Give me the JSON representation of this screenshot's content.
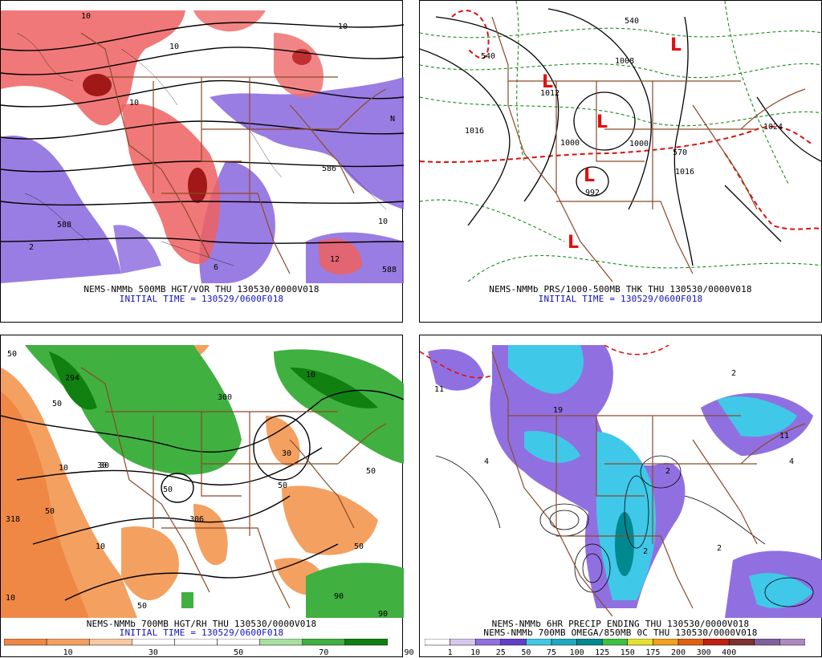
{
  "panels": {
    "top_left": {
      "caption": "NEMS-NMMb 500MB HGT/VOR THU 130530/0000V018",
      "initial": "INITIAL TIME = 130529/0600F018",
      "labels": [
        "10",
        "588",
        "586",
        "10",
        "N",
        "2",
        "6",
        "10",
        "588",
        "10",
        "12",
        "10"
      ]
    },
    "top_right": {
      "caption": "NEMS-NMMb PRS/1000-500MB THK THU 130530/0000V018",
      "initial": "INITIAL TIME = 130529/0600F018",
      "labels": [
        "540",
        "1008",
        "1012",
        "1016",
        "1000",
        "992",
        "1024",
        "1016",
        "570",
        "540",
        "1000"
      ],
      "low_marker": "L"
    },
    "bottom_left": {
      "caption": "NEMS-NMMb 700MB HGT/RH THU 130530/0000V018",
      "initial": "INITIAL TIME = 130529/0600F018",
      "labels": [
        "50",
        "294",
        "50",
        "10",
        "300",
        "30",
        "50",
        "50",
        "50",
        "306",
        "318",
        "30",
        "10",
        "50",
        "10",
        "50",
        "90",
        "90",
        "10",
        "30",
        "50"
      ],
      "colorbar": {
        "colors": [
          "#ee8844",
          "#f4a060",
          "#f8c8a0",
          "#ffffff",
          "#ffffff",
          "#ffffff",
          "#a8e0a0",
          "#40b040",
          "#108010"
        ],
        "ticks": [
          "10",
          "30",
          "50",
          "70",
          "90"
        ]
      }
    },
    "bottom_right": {
      "caption": "NEMS-NMMb 6HR PRECIP ENDING THU 130530/0000V018",
      "caption2": "NEMS-NMMb 700MB OMEGA/850MB 0C THU 130530/0000V018",
      "labels": [
        "11",
        "4",
        "2",
        "2",
        "4",
        "2",
        "11",
        "19",
        "2"
      ],
      "colorbar": {
        "colors": [
          "#ffffff",
          "#d8c8f0",
          "#9070e0",
          "#6040c8",
          "#40c8e8",
          "#20a8c0",
          "#008890",
          "#40c040",
          "#e8e030",
          "#f0a020",
          "#e06010",
          "#c02010",
          "#803030",
          "#8060a0",
          "#b088c0"
        ],
        "ticks": [
          "1",
          "10",
          "25",
          "50",
          "75",
          "100",
          "125",
          "150",
          "175",
          "200",
          "300",
          "400"
        ]
      }
    }
  }
}
